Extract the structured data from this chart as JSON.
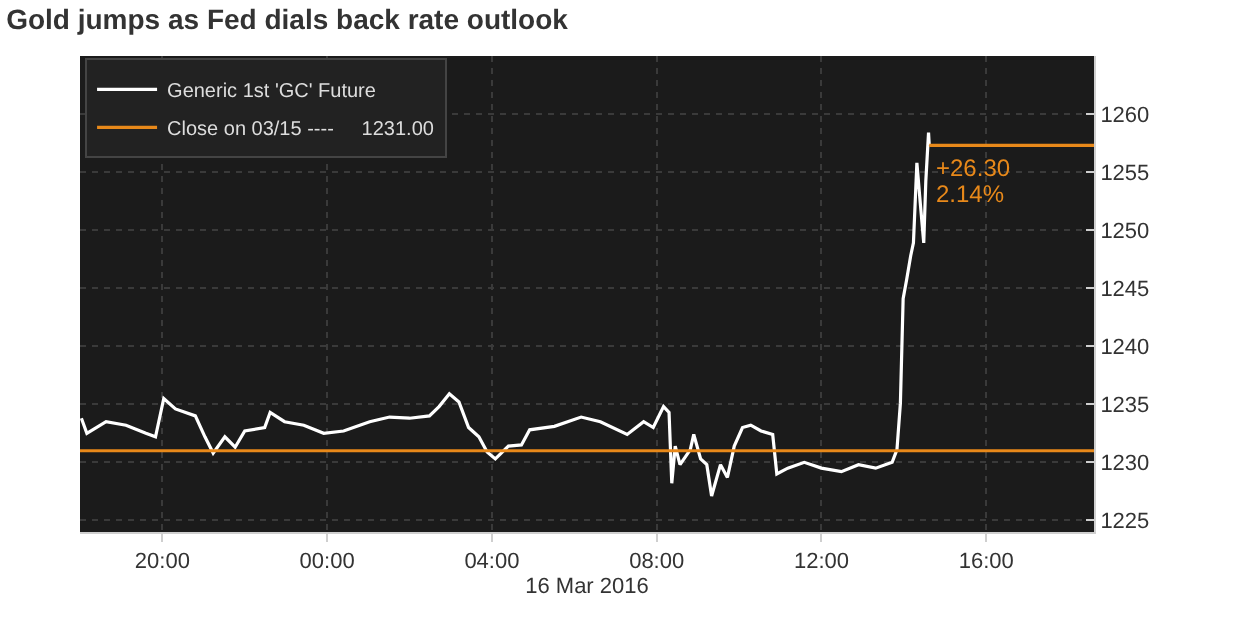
{
  "chart_data": {
    "type": "line",
    "title": "Gold jumps as Fed dials back rate outlook",
    "xlabel": "16 Mar 2016",
    "series": [
      {
        "name": "Generic 1st 'GC' Future",
        "color": "#ffffff",
        "x": [
          "2016-03-15T18:02",
          "2016-03-15T18:10",
          "2016-03-15T18:38",
          "2016-03-15T19:07",
          "2016-03-15T19:36",
          "2016-03-15T19:50",
          "2016-03-15T20:02",
          "2016-03-15T20:19",
          "2016-03-15T20:48",
          "2016-03-15T21:02",
          "2016-03-15T21:14",
          "2016-03-15T21:31",
          "2016-03-15T21:46",
          "2016-03-15T22:00",
          "2016-03-15T22:29",
          "2016-03-15T22:37",
          "2016-03-15T22:58",
          "2016-03-15T23:26",
          "2016-03-15T23:55",
          "2016-03-16T00:24",
          "2016-03-16T01:02",
          "2016-03-16T01:31",
          "2016-03-16T02:00",
          "2016-03-16T02:29",
          "2016-03-16T02:43",
          "2016-03-16T02:58",
          "2016-03-16T03:12",
          "2016-03-16T03:26",
          "2016-03-16T03:41",
          "2016-03-16T03:53",
          "2016-03-16T04:05",
          "2016-03-16T04:24",
          "2016-03-16T04:43",
          "2016-03-16T04:55",
          "2016-03-16T05:31",
          "2016-03-16T06:10",
          "2016-03-16T06:38",
          "2016-03-16T07:17",
          "2016-03-16T07:41",
          "2016-03-16T07:55",
          "2016-03-16T08:10",
          "2016-03-16T08:18",
          "2016-03-16T08:22",
          "2016-03-16T08:27",
          "2016-03-16T08:34",
          "2016-03-16T08:49",
          "2016-03-16T08:54",
          "2016-03-16T09:04",
          "2016-03-16T09:13",
          "2016-03-16T09:20",
          "2016-03-16T09:33",
          "2016-03-16T09:43",
          "2016-03-16T09:53",
          "2016-03-16T10:05",
          "2016-03-16T10:17",
          "2016-03-16T10:32",
          "2016-03-16T10:49",
          "2016-03-16T10:55",
          "2016-03-16T11:11",
          "2016-03-16T11:35",
          "2016-03-16T12:00",
          "2016-03-16T12:29",
          "2016-03-16T12:54",
          "2016-03-16T13:19",
          "2016-03-16T13:43",
          "2016-03-16T13:50",
          "2016-03-16T13:55",
          "2016-03-16T13:59",
          "2016-03-16T14:04",
          "2016-03-16T14:10",
          "2016-03-16T14:14",
          "2016-03-16T14:19",
          "2016-03-16T14:24",
          "2016-03-16T14:29",
          "2016-03-16T14:32",
          "2016-03-16T14:36",
          "2016-03-16T14:37"
        ],
        "values": [
          1233.8,
          1232.5,
          1233.5,
          1233.2,
          1232.5,
          1232.2,
          1235.5,
          1234.6,
          1234.0,
          1232.2,
          1230.8,
          1232.2,
          1231.3,
          1232.7,
          1233.0,
          1234.3,
          1233.5,
          1233.2,
          1232.5,
          1232.7,
          1233.5,
          1233.9,
          1233.8,
          1234.0,
          1234.8,
          1235.9,
          1235.2,
          1233.0,
          1232.2,
          1230.9,
          1230.3,
          1231.4,
          1231.5,
          1232.8,
          1233.1,
          1233.9,
          1233.5,
          1232.4,
          1233.5,
          1233.0,
          1234.8,
          1234.3,
          1228.2,
          1231.4,
          1229.8,
          1231.1,
          1232.4,
          1230.3,
          1229.8,
          1227.1,
          1229.8,
          1228.7,
          1231.4,
          1233.0,
          1233.2,
          1232.7,
          1232.4,
          1229.0,
          1229.5,
          1230.0,
          1229.5,
          1229.2,
          1229.8,
          1229.5,
          1230.0,
          1231.1,
          1235.1,
          1244.1,
          1245.7,
          1247.8,
          1248.9,
          1255.8,
          1252.3,
          1248.9,
          1254.2,
          1258.4,
          1257.3
        ]
      },
      {
        "name": "Close on 03/15 ----     1231.00",
        "color": "#e8891a",
        "x": [
          "2016-03-15T18:00",
          "2016-03-16T18:37"
        ],
        "values": [
          1231.0,
          1231.0
        ]
      },
      {
        "color": "#e8891a",
        "x": [
          "2016-03-16T14:37",
          "2016-03-16T18:37"
        ],
        "values": [
          1257.3,
          1257.3
        ]
      }
    ],
    "annotations": [
      {
        "text": "+26.30",
        "x": "2016-03-16T14:37",
        "y": 1257.3
      },
      {
        "text": "2.14%",
        "x": "2016-03-16T14:37",
        "y": 1257.3
      }
    ],
    "xlim": [
      "2016-03-15T18:00",
      "2016-03-16T18:37"
    ],
    "xticks": [
      {
        "value": "2016-03-15T20:00",
        "label": "20:00"
      },
      {
        "value": "2016-03-16T00:00",
        "label": "00:00"
      },
      {
        "value": "2016-03-16T04:00",
        "label": "04:00"
      },
      {
        "value": "2016-03-16T08:00",
        "label": "08:00"
      },
      {
        "value": "2016-03-16T12:00",
        "label": "12:00"
      },
      {
        "value": "2016-03-16T16:00",
        "label": "16:00"
      }
    ],
    "ylim": [
      1224,
      1265
    ],
    "yticks": [
      1225,
      1230,
      1235,
      1240,
      1245,
      1250,
      1255,
      1260
    ],
    "grid": true,
    "legend": "top left"
  }
}
